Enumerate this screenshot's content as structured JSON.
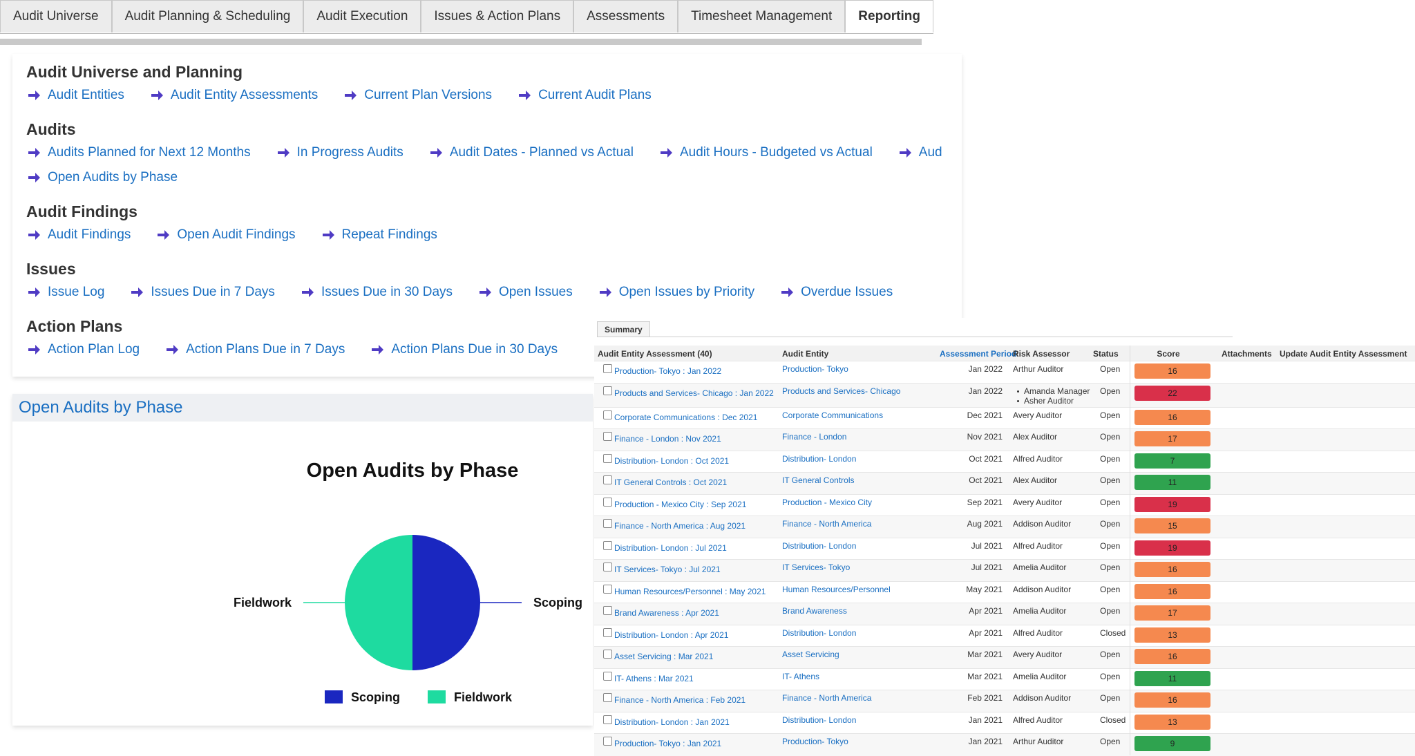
{
  "nav": {
    "tabs": [
      "Audit Universe",
      "Audit Planning & Scheduling",
      "Audit Execution",
      "Issues & Action Plans",
      "Assessments",
      "Timesheet Management",
      "Reporting"
    ],
    "active": 6
  },
  "sections": [
    {
      "title": "Audit Universe and Planning",
      "rows": [
        [
          "Audit Entities",
          "Audit Entity Assessments",
          "Current Plan Versions",
          "Current Audit Plans"
        ]
      ]
    },
    {
      "title": "Audits",
      "rows": [
        [
          "Audits Planned for Next 12 Months",
          "In Progress Audits",
          "Audit Dates - Planned vs Actual",
          "Audit Hours - Budgeted vs Actual",
          "Aud"
        ],
        [
          "Open Audits by Phase"
        ]
      ]
    },
    {
      "title": "Audit Findings",
      "rows": [
        [
          "Audit Findings",
          "Open Audit Findings",
          "Repeat Findings"
        ]
      ]
    },
    {
      "title": "Issues",
      "rows": [
        [
          "Issue Log",
          "Issues Due in 7 Days",
          "Issues Due in 30 Days",
          "Open Issues",
          "Open Issues by Priority",
          "Overdue Issues"
        ]
      ]
    },
    {
      "title": "Action Plans",
      "rows": [
        [
          "Action Plan Log",
          "Action Plans Due in 7 Days",
          "Action Plans Due in 30 Days"
        ]
      ]
    }
  ],
  "panel": {
    "title": "Open Audits by Phase"
  },
  "chart_data": {
    "type": "pie",
    "title": "Open Audits by Phase",
    "categories": [
      "Scoping",
      "Fieldwork"
    ],
    "values": [
      50,
      50
    ],
    "colors": [
      "#1a27c0",
      "#1edba0"
    ]
  },
  "table": {
    "tab": "Summary",
    "columns": [
      "Audit Entity Assessment (40)",
      "Audit Entity",
      "Assessment Period",
      "Risk Assessor",
      "Status",
      "Score",
      "Attachments",
      "Update Audit Entity Assessment"
    ],
    "rows": [
      [
        "Production- Tokyo : Jan 2022",
        "Production- Tokyo",
        "Jan 2022",
        [
          "Arthur Auditor"
        ],
        "Open",
        16,
        "#f5894f"
      ],
      [
        "Products and Services- Chicago : Jan 2022",
        "Products and Services- Chicago",
        "Jan 2022",
        [
          "Amanda Manager",
          "Asher Auditor"
        ],
        "Open",
        22,
        "#d9304a"
      ],
      [
        "Corporate Communications : Dec 2021",
        "Corporate Communications",
        "Dec 2021",
        [
          "Avery Auditor"
        ],
        "Open",
        16,
        "#f5894f"
      ],
      [
        "Finance - London : Nov 2021",
        "Finance - London",
        "Nov 2021",
        [
          "Alex Auditor"
        ],
        "Open",
        17,
        "#f5894f"
      ],
      [
        "Distribution- London : Oct 2021",
        "Distribution- London",
        "Oct 2021",
        [
          "Alfred Auditor"
        ],
        "Open",
        7,
        "#2fa34f"
      ],
      [
        "IT General Controls : Oct 2021",
        "IT General Controls",
        "Oct 2021",
        [
          "Alex Auditor"
        ],
        "Open",
        11,
        "#2fa34f"
      ],
      [
        "Production - Mexico City : Sep 2021",
        "Production - Mexico City",
        "Sep 2021",
        [
          "Avery Auditor"
        ],
        "Open",
        19,
        "#d9304a"
      ],
      [
        "Finance - North America : Aug 2021",
        "Finance - North America",
        "Aug 2021",
        [
          "Addison Auditor"
        ],
        "Open",
        15,
        "#f5894f"
      ],
      [
        "Distribution- London : Jul 2021",
        "Distribution- London",
        "Jul 2021",
        [
          "Alfred Auditor"
        ],
        "Open",
        19,
        "#d9304a"
      ],
      [
        "IT Services- Tokyo : Jul 2021",
        "IT Services- Tokyo",
        "Jul 2021",
        [
          "Amelia Auditor"
        ],
        "Open",
        16,
        "#f5894f"
      ],
      [
        "Human Resources/Personnel : May 2021",
        "Human Resources/Personnel",
        "May 2021",
        [
          "Addison Auditor"
        ],
        "Open",
        16,
        "#f5894f"
      ],
      [
        "Brand Awareness : Apr 2021",
        "Brand Awareness",
        "Apr 2021",
        [
          "Amelia Auditor"
        ],
        "Open",
        17,
        "#f5894f"
      ],
      [
        "Distribution- London : Apr 2021",
        "Distribution- London",
        "Apr 2021",
        [
          "Alfred Auditor"
        ],
        "Closed",
        13,
        "#f5894f"
      ],
      [
        "Asset Servicing : Mar 2021",
        "Asset Servicing",
        "Mar 2021",
        [
          "Avery Auditor"
        ],
        "Open",
        16,
        "#f5894f"
      ],
      [
        "IT- Athens : Mar 2021",
        "IT- Athens",
        "Mar 2021",
        [
          "Amelia Auditor"
        ],
        "Open",
        11,
        "#2fa34f"
      ],
      [
        "Finance - North America : Feb 2021",
        "Finance - North America",
        "Feb 2021",
        [
          "Addison Auditor"
        ],
        "Open",
        16,
        "#f5894f"
      ],
      [
        "Distribution- London : Jan 2021",
        "Distribution- London",
        "Jan 2021",
        [
          "Alfred Auditor"
        ],
        "Closed",
        13,
        "#f5894f"
      ],
      [
        "Production- Tokyo : Jan 2021",
        "Production- Tokyo",
        "Jan 2021",
        [
          "Arthur Auditor"
        ],
        "Open",
        9,
        "#2fa34f"
      ]
    ]
  }
}
